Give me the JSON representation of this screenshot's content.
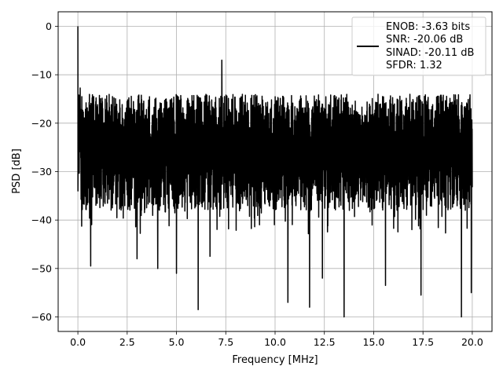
{
  "chart_data": {
    "type": "line",
    "title": "",
    "xlabel": "Frequency [MHz]",
    "ylabel": "PSD [dB]",
    "xlim": [
      -1.0,
      21.0
    ],
    "ylim": [
      -63.0,
      3.0
    ],
    "xticks": [
      0.0,
      2.5,
      5.0,
      7.5,
      10.0,
      12.5,
      15.0,
      17.5,
      20.0
    ],
    "xtick_labels": [
      "0.0",
      "2.5",
      "5.0",
      "7.5",
      "10.0",
      "12.5",
      "15.0",
      "17.5",
      "20.0"
    ],
    "yticks": [
      0,
      -10,
      -20,
      -30,
      -40,
      -50,
      -60
    ],
    "ytick_labels": [
      "0",
      "−10",
      "−20",
      "−30",
      "−40",
      "−50",
      "−60"
    ],
    "grid": true,
    "legend_position": "top-right",
    "line_color": "#000000",
    "series": [
      {
        "legend_lines": [
          "ENOB: -3.63 bits",
          "SNR: -20.06 dB",
          "SINAD: -20.11 dB",
          "SFDR: 1.32"
        ],
        "x_range": [
          0.0,
          20.0
        ],
        "noise_floor_db": -20.06,
        "upper_envelope_db": -14,
        "lower_envelope_db": -38,
        "peaks": [
          {
            "x": 0.0,
            "y": 0.0
          },
          {
            "x": 7.3,
            "y": -7.0
          }
        ],
        "notches": [
          {
            "x": 0.65,
            "y": -49.5
          },
          {
            "x": 3.0,
            "y": -48.0
          },
          {
            "x": 4.05,
            "y": -50.0
          },
          {
            "x": 5.0,
            "y": -51.0
          },
          {
            "x": 6.1,
            "y": -58.5
          },
          {
            "x": 6.7,
            "y": -47.5
          },
          {
            "x": 10.65,
            "y": -57.0
          },
          {
            "x": 11.75,
            "y": -58.0
          },
          {
            "x": 12.4,
            "y": -52.0
          },
          {
            "x": 13.5,
            "y": -60.0
          },
          {
            "x": 15.6,
            "y": -53.5
          },
          {
            "x": 17.4,
            "y": -55.5
          },
          {
            "x": 19.45,
            "y": -60.0
          },
          {
            "x": 19.95,
            "y": -55.0
          }
        ]
      }
    ]
  }
}
